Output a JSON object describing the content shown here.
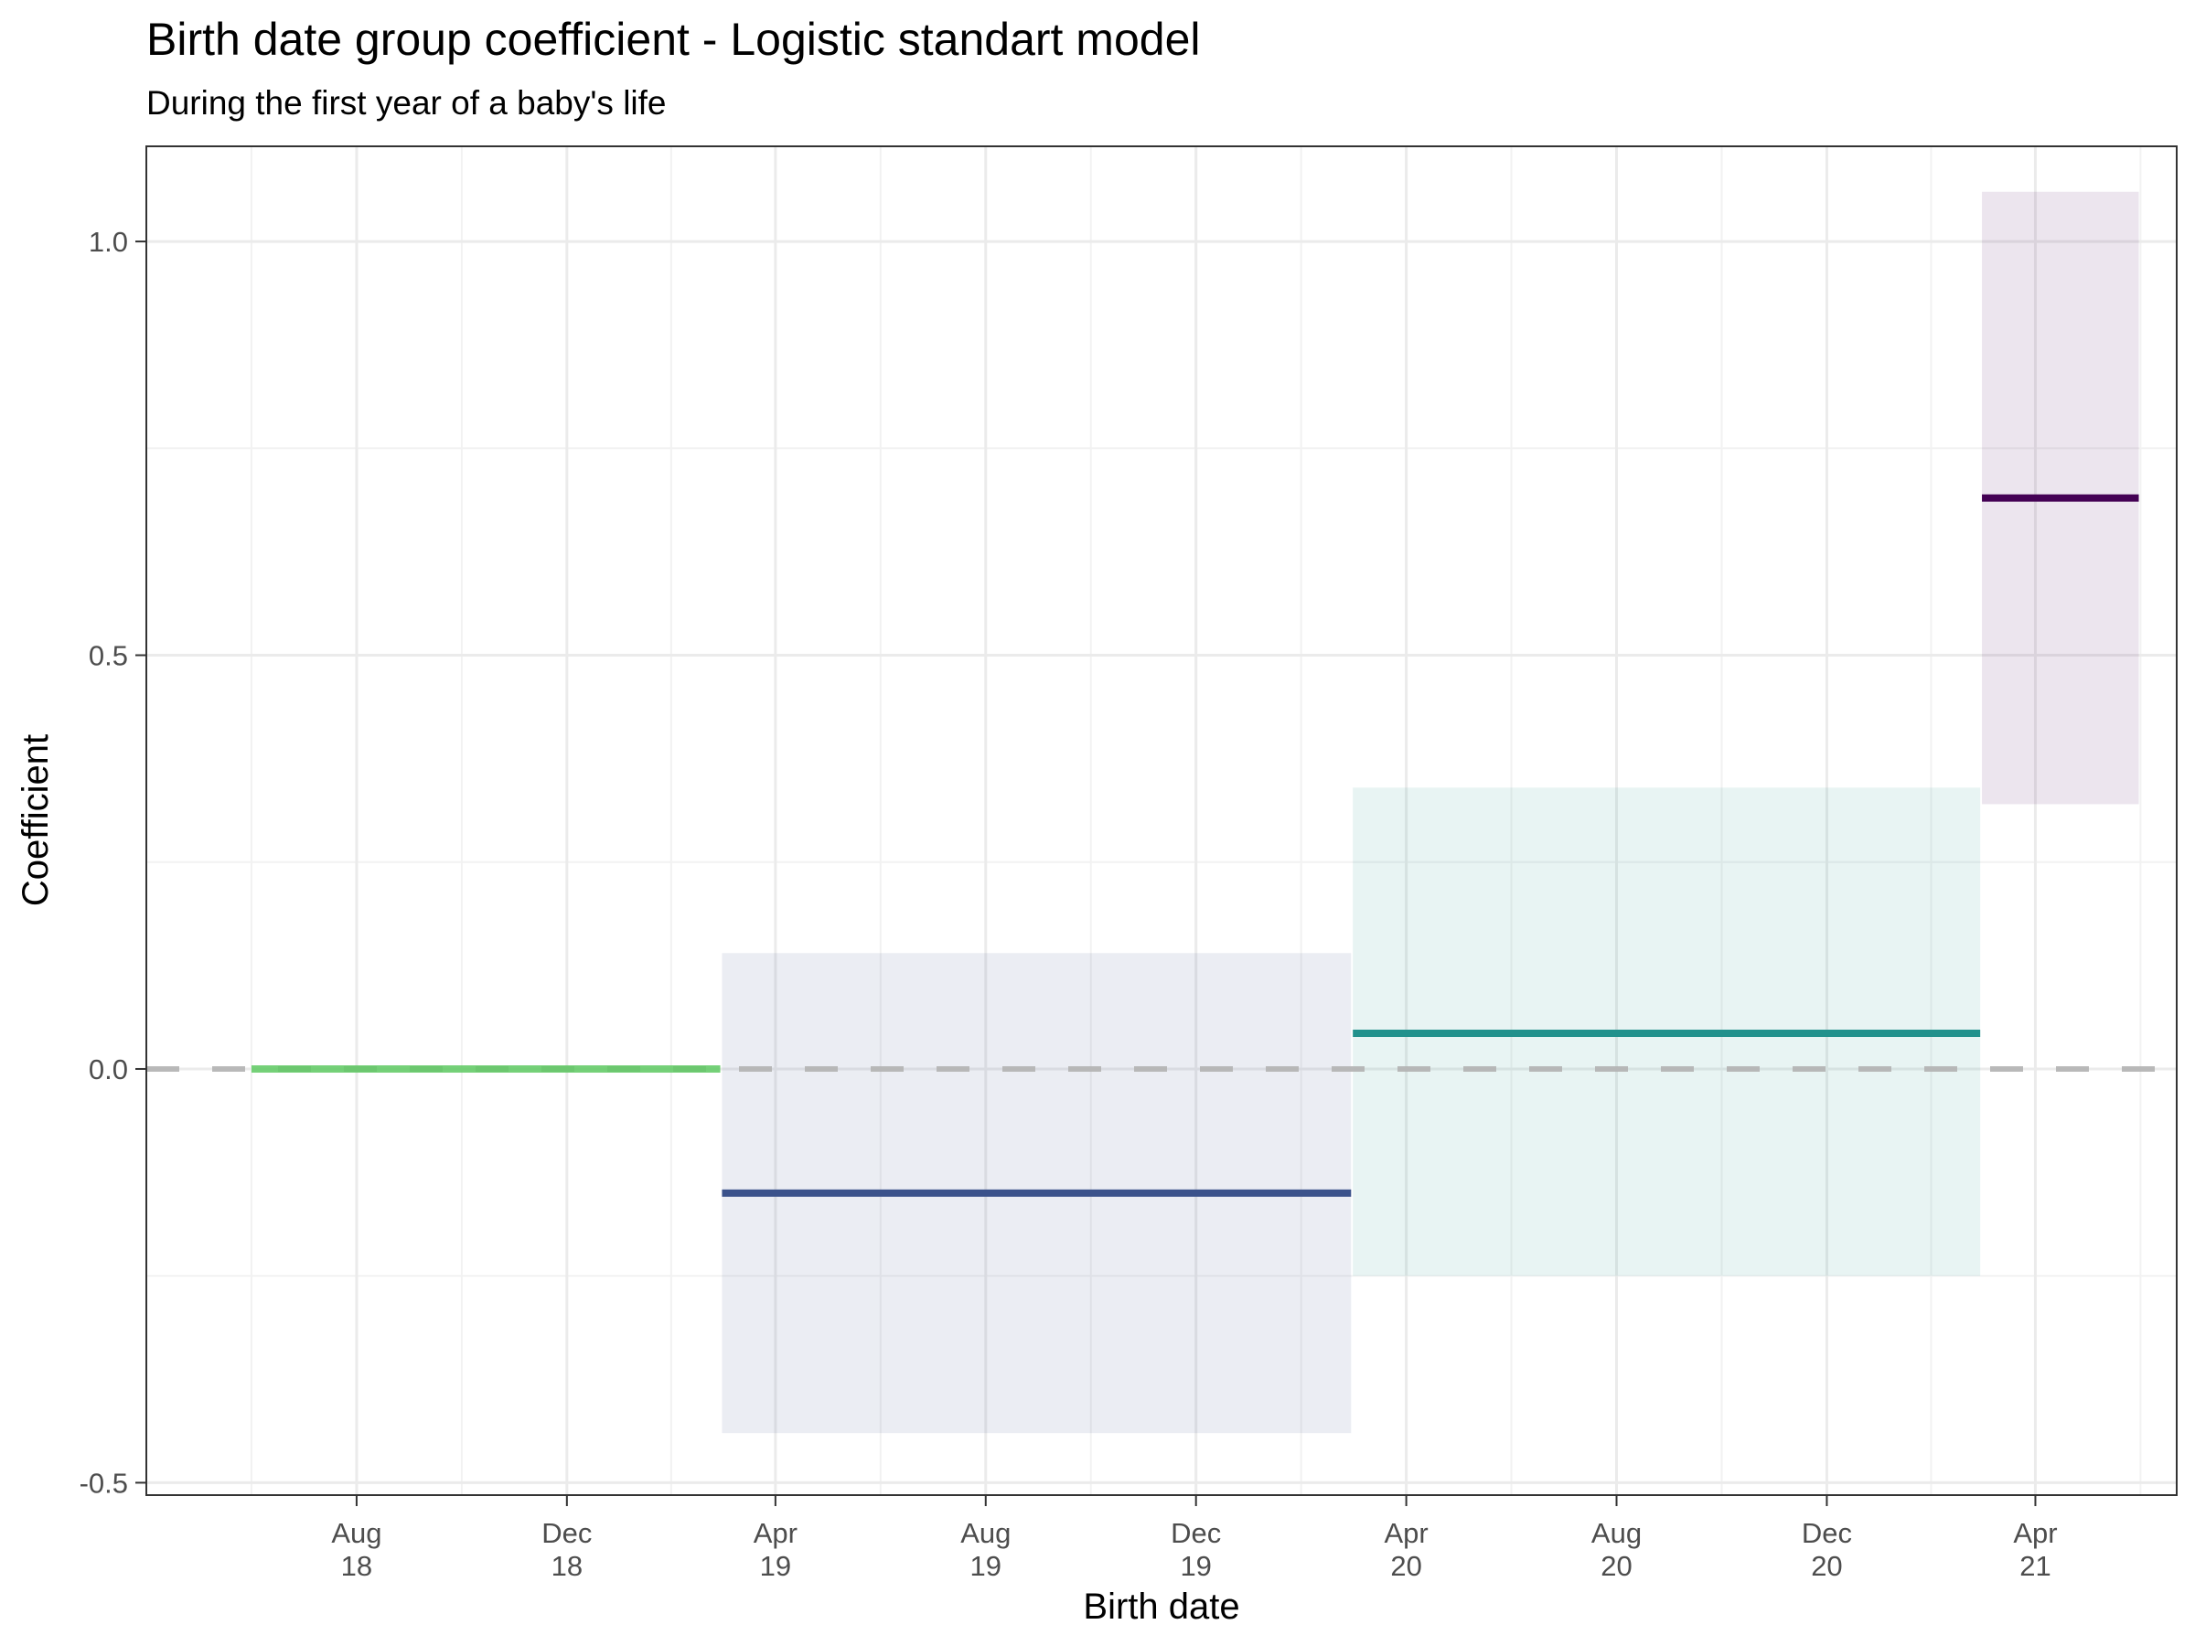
{
  "chart_data": {
    "type": "line",
    "title": "Birth date group coefficient - Logistic standart model",
    "subtitle": "During the first year of a baby's life",
    "xlabel": "Birth date",
    "ylabel": "Coefficient",
    "xlim": [
      "2018-04-01",
      "2021-06-22"
    ],
    "ylim": [
      -0.515,
      1.115
    ],
    "grid": true,
    "legend": "none",
    "x_ticks": [
      {
        "date": "2018-08-01",
        "line1": "Aug",
        "line2": "18"
      },
      {
        "date": "2018-12-01",
        "line1": "Dec",
        "line2": "18"
      },
      {
        "date": "2019-04-01",
        "line1": "Apr",
        "line2": "19"
      },
      {
        "date": "2019-08-01",
        "line1": "Aug",
        "line2": "19"
      },
      {
        "date": "2019-12-01",
        "line1": "Dec",
        "line2": "19"
      },
      {
        "date": "2020-04-01",
        "line1": "Apr",
        "line2": "20"
      },
      {
        "date": "2020-08-01",
        "line1": "Aug",
        "line2": "20"
      },
      {
        "date": "2020-12-01",
        "line1": "Dec",
        "line2": "20"
      },
      {
        "date": "2021-04-01",
        "line1": "Apr",
        "line2": "21"
      }
    ],
    "y_ticks": [
      {
        "value": -0.5,
        "label": "-0.5"
      },
      {
        "value": 0,
        "label": "0.0"
      },
      {
        "value": 0.5,
        "label": "0.5"
      },
      {
        "value": 1,
        "label": "1.0"
      }
    ],
    "reference_line": {
      "y": 0,
      "style": "dashed",
      "color": "#b3b3b3"
    },
    "groups": [
      {
        "start": "2018-06-01",
        "end": "2019-02-28",
        "estimate": 0.0,
        "lower": null,
        "upper": null,
        "color": "#5ec962",
        "reference": true
      },
      {
        "start": "2019-03-01",
        "end": "2020-02-29",
        "estimate": -0.15,
        "lower": -0.44,
        "upper": 0.14,
        "color": "#3b528b"
      },
      {
        "start": "2020-03-01",
        "end": "2021-02-28",
        "estimate": 0.043,
        "lower": -0.25,
        "upper": 0.34,
        "color": "#21918c"
      },
      {
        "start": "2021-03-01",
        "end": "2021-05-31",
        "estimate": 0.69,
        "lower": 0.32,
        "upper": 1.06,
        "color": "#440154"
      }
    ]
  }
}
